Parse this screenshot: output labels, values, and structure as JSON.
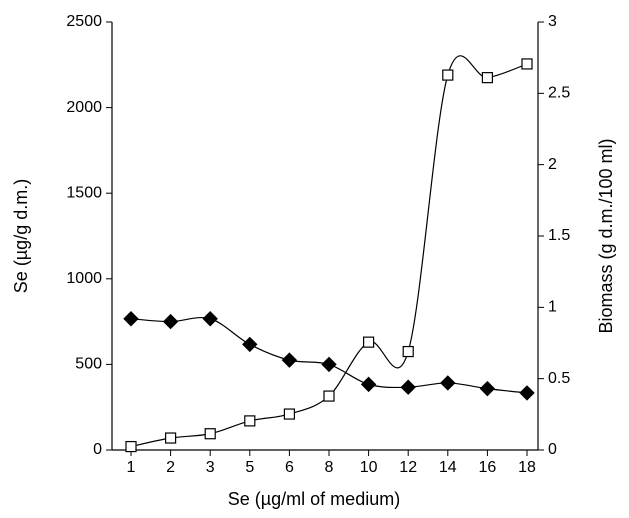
{
  "chart_data": {
    "type": "line",
    "x_label": "Se (µg/ml of medium)",
    "y_label": "Se (µg/g d.m.)",
    "y2_label": "Biomass (g d.m./100 ml)",
    "categories": [
      "1",
      "2",
      "3",
      "5",
      "6",
      "8",
      "10",
      "12",
      "14",
      "16",
      "18"
    ],
    "ylim": [
      0,
      2500
    ],
    "yticks": [
      0,
      500,
      1000,
      1500,
      2000,
      2500
    ],
    "y2lim": [
      0,
      3
    ],
    "y2ticks": [
      0,
      0.5,
      1,
      1.5,
      2,
      2.5,
      3
    ],
    "series": [
      {
        "color": "#000000",
        "marker": "square",
        "values": [
          20,
          70,
          95,
          170,
          210,
          315,
          630,
          575,
          2190,
          2175,
          2255
        ]
      },
      {
        "color": "#000000",
        "marker": "diamond",
        "axis": "y2",
        "values": [
          0.92,
          0.9,
          0.92,
          0.74,
          0.63,
          0.6,
          0.46,
          0.44,
          0.47,
          0.43,
          0.4
        ]
      }
    ]
  }
}
